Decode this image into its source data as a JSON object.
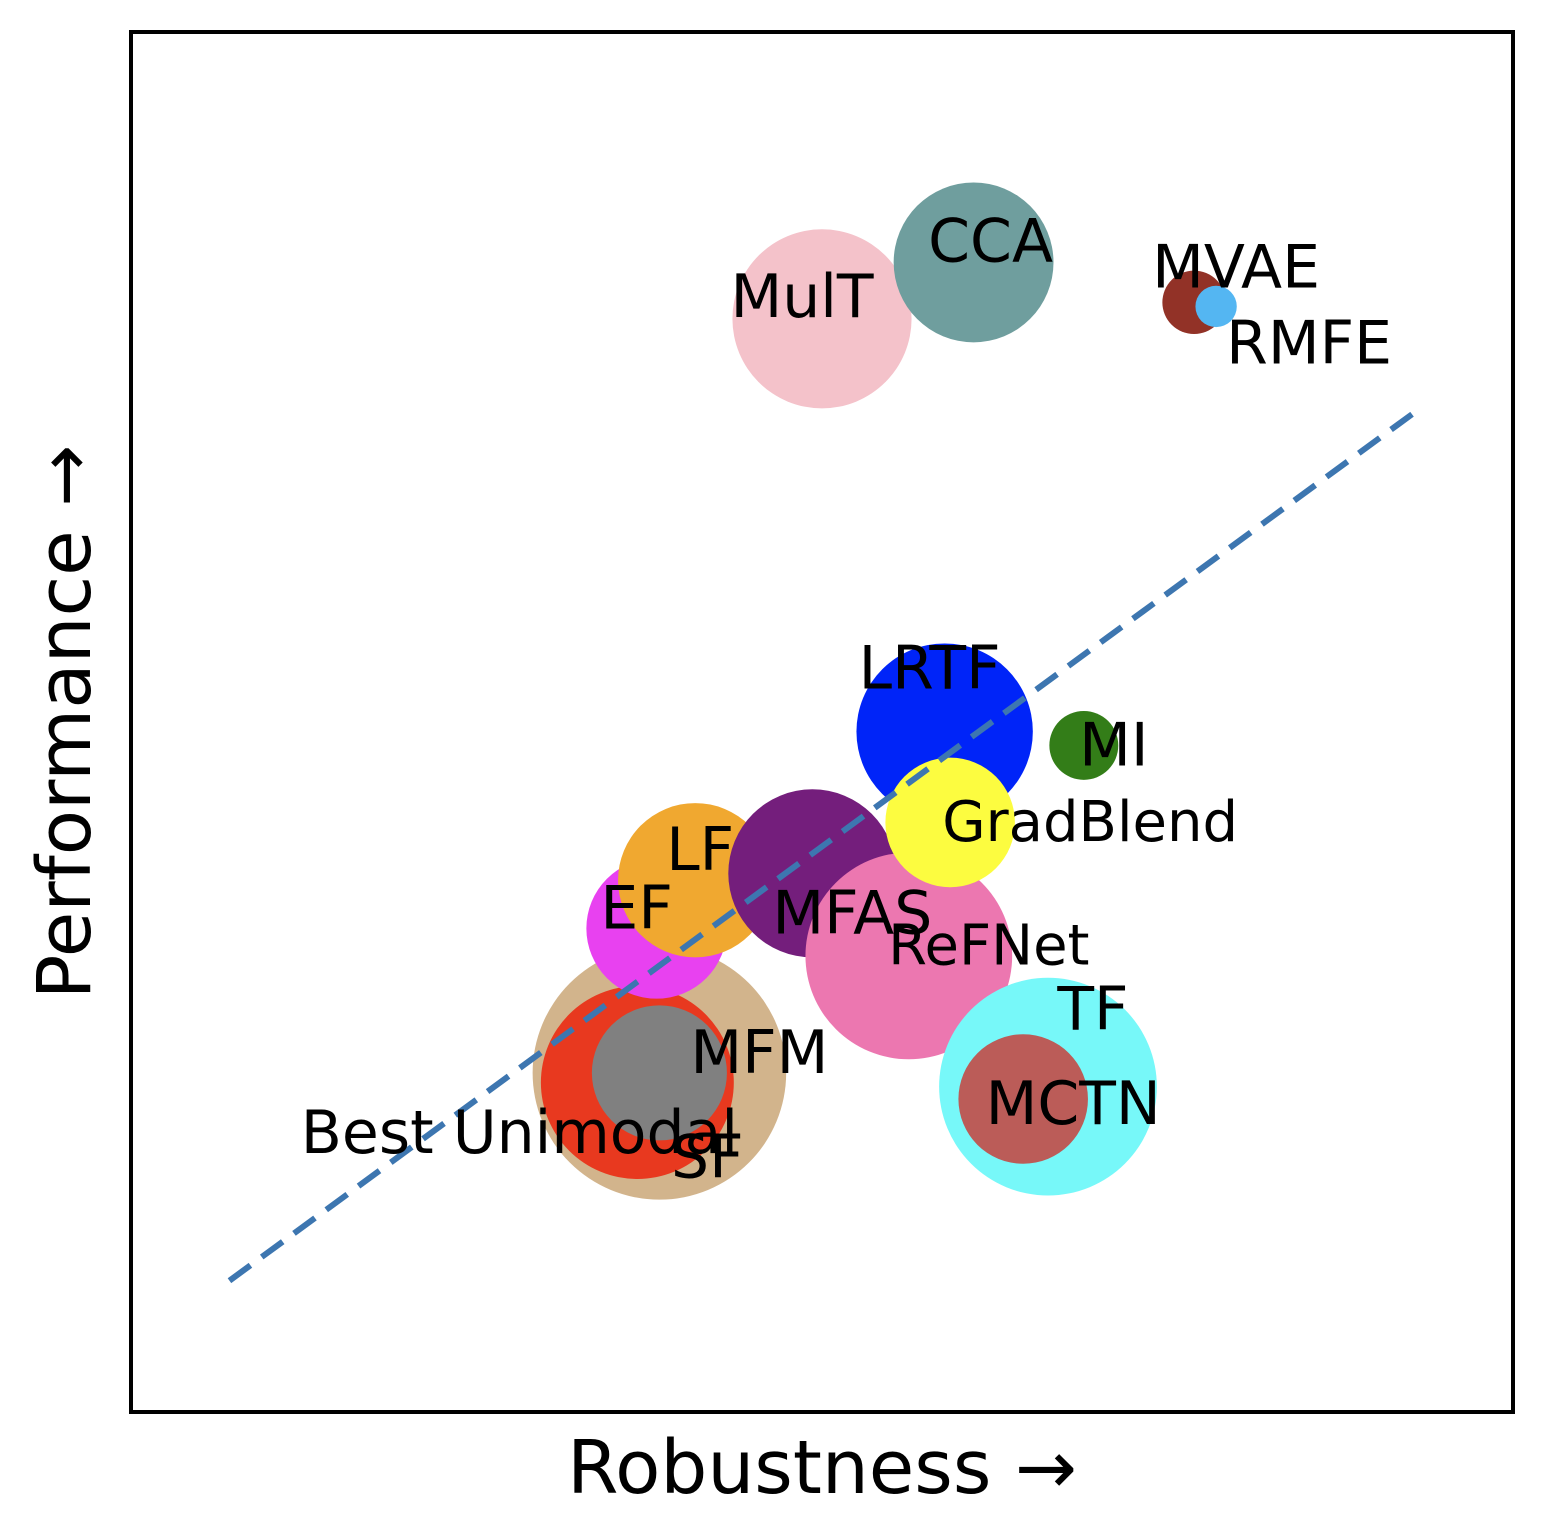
{
  "chart_data": {
    "type": "scatter",
    "xlabel": "Robustness →",
    "ylabel": "Performance →",
    "xlim": [
      0,
      1
    ],
    "ylim": [
      0,
      1
    ],
    "grid": false,
    "legend": "none",
    "points": [
      {
        "label": "Best Unimodal",
        "x": 0.382,
        "y": 0.245,
        "size": 0.092,
        "color": "#d2b48c"
      },
      {
        "label": "SF",
        "x": 0.366,
        "y": 0.238,
        "size": 0.07,
        "color": "#e8391f"
      },
      {
        "label": "MFM",
        "x": 0.382,
        "y": 0.245,
        "size": 0.049,
        "color": "#808080"
      },
      {
        "label": "EF",
        "x": 0.38,
        "y": 0.35,
        "size": 0.051,
        "color": "#e841f0"
      },
      {
        "label": "LF",
        "x": 0.408,
        "y": 0.385,
        "size": 0.056,
        "color": "#f0a830"
      },
      {
        "label": "MFAS",
        "x": 0.493,
        "y": 0.39,
        "size": 0.061,
        "color": "#741e7c"
      },
      {
        "label": "ReFNet",
        "x": 0.563,
        "y": 0.33,
        "size": 0.075,
        "color": "#ec77b0"
      },
      {
        "label": "LRTF",
        "x": 0.589,
        "y": 0.493,
        "size": 0.064,
        "color": "#0024f8"
      },
      {
        "label": "GradBlend",
        "x": 0.593,
        "y": 0.427,
        "size": 0.047,
        "color": "#fcfc40"
      },
      {
        "label": "MI",
        "x": 0.69,
        "y": 0.483,
        "size": 0.025,
        "color": "#337d18"
      },
      {
        "label": "TF",
        "x": 0.664,
        "y": 0.235,
        "size": 0.079,
        "color": "#77f8f9"
      },
      {
        "label": "MCTN",
        "x": 0.646,
        "y": 0.226,
        "size": 0.047,
        "color": "#bb5c58"
      },
      {
        "label": "MulT",
        "x": 0.5,
        "y": 0.793,
        "size": 0.065,
        "color": "#f4c2ca"
      },
      {
        "label": "CCA",
        "x": 0.61,
        "y": 0.834,
        "size": 0.058,
        "color": "#6f9e9e"
      },
      {
        "label": "MVAE",
        "x": 0.77,
        "y": 0.805,
        "size": 0.023,
        "color": "#923227"
      },
      {
        "label": "RMFE",
        "x": 0.786,
        "y": 0.802,
        "size": 0.015,
        "color": "#54b6f2"
      }
    ],
    "trend_line": {
      "x": [
        0.07,
        0.93
      ],
      "y": [
        0.094,
        0.725
      ],
      "style": "dashed",
      "color": "#3d76b0"
    }
  }
}
